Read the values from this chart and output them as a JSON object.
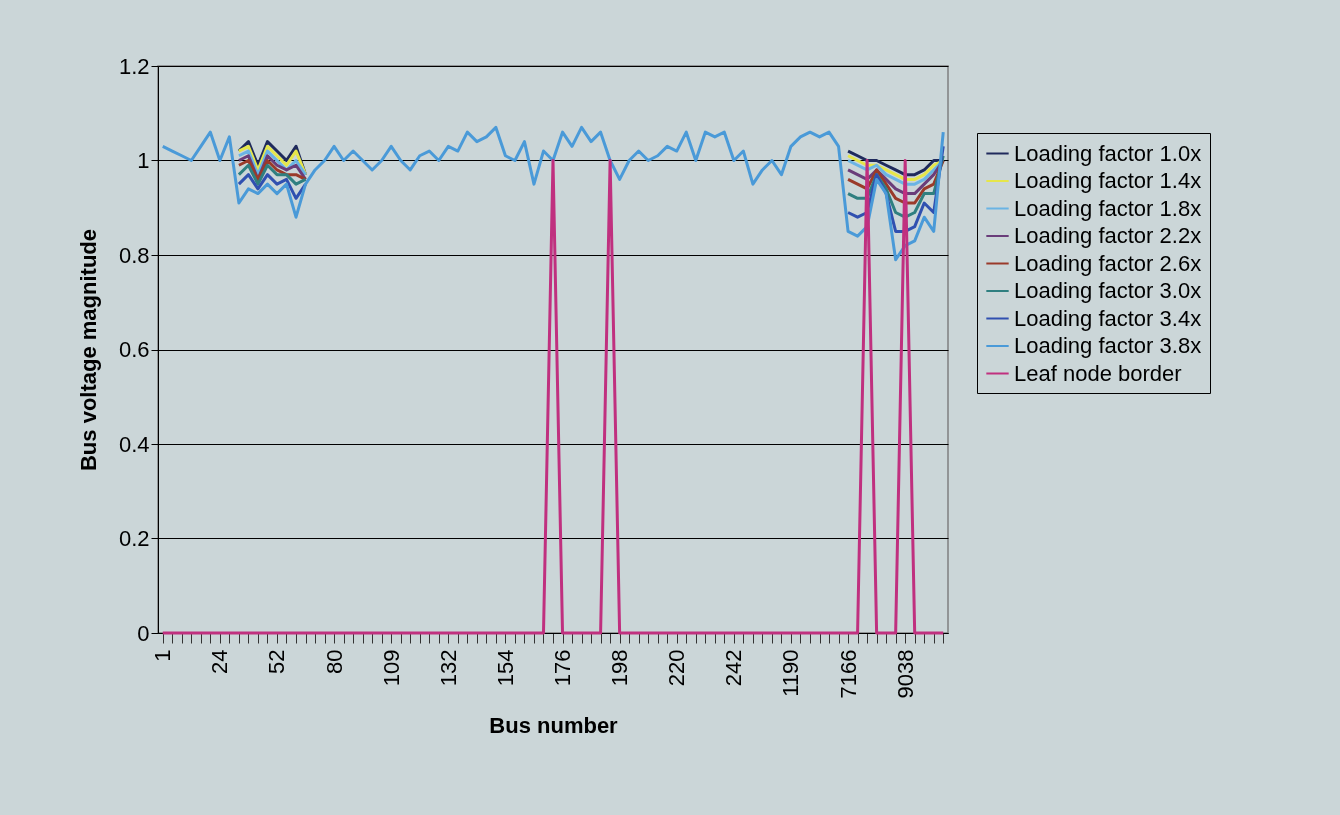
{
  "chart_data": {
    "type": "line",
    "xlabel": "Bus number",
    "ylabel": "Bus voltage magnitude",
    "categories": [
      "1",
      null,
      null,
      null,
      null,
      null,
      "24",
      null,
      null,
      null,
      null,
      null,
      "52",
      null,
      null,
      null,
      null,
      null,
      "80",
      null,
      null,
      null,
      null,
      null,
      "109",
      null,
      null,
      null,
      null,
      null,
      "132",
      null,
      null,
      null,
      null,
      null,
      "154",
      null,
      null,
      null,
      null,
      null,
      "176",
      null,
      null,
      null,
      null,
      null,
      "198",
      null,
      null,
      null,
      null,
      null,
      "220",
      null,
      null,
      null,
      null,
      null,
      "242",
      null,
      null,
      null,
      null,
      null,
      "1190",
      null,
      null,
      null,
      null,
      null,
      "7166",
      null,
      null,
      null,
      null,
      null,
      "9038",
      null,
      null,
      null,
      null
    ],
    "ylim": [
      0,
      1.2
    ],
    "yticks": [
      0,
      0.2,
      0.4,
      0.6,
      0.8,
      1,
      1.2
    ],
    "grid": "y",
    "legend": "right",
    "series": [
      {
        "name": "Loading factor 1.0x",
        "color": "#1f2a5c",
        "values": [
          null,
          null,
          null,
          null,
          null,
          null,
          null,
          null,
          1.02,
          1.04,
          0.99,
          1.04,
          1.02,
          1.0,
          1.03,
          0.97,
          null,
          null,
          null,
          null,
          null,
          null,
          null,
          null,
          null,
          null,
          null,
          null,
          null,
          null,
          null,
          null,
          null,
          null,
          null,
          null,
          null,
          null,
          null,
          null,
          null,
          null,
          null,
          null,
          null,
          null,
          null,
          null,
          null,
          null,
          null,
          null,
          null,
          null,
          null,
          null,
          null,
          null,
          null,
          null,
          null,
          null,
          null,
          null,
          null,
          null,
          null,
          null,
          null,
          null,
          null,
          null,
          1.02,
          1.01,
          1.0,
          1.0,
          0.99,
          0.98,
          0.97,
          0.97,
          0.98,
          1.0,
          1.0
        ]
      },
      {
        "name": "Loading factor 1.4x",
        "color": "#e6e64a",
        "values": [
          null,
          null,
          null,
          null,
          null,
          null,
          null,
          null,
          1.02,
          1.03,
          0.98,
          1.03,
          1.01,
          0.99,
          1.02,
          0.97,
          null,
          null,
          null,
          null,
          null,
          null,
          null,
          null,
          null,
          null,
          null,
          null,
          null,
          null,
          null,
          null,
          null,
          null,
          null,
          null,
          null,
          null,
          null,
          null,
          null,
          null,
          null,
          null,
          null,
          null,
          null,
          null,
          null,
          null,
          null,
          null,
          null,
          null,
          null,
          null,
          null,
          null,
          null,
          null,
          null,
          null,
          null,
          null,
          null,
          null,
          null,
          null,
          null,
          null,
          null,
          null,
          1.01,
          1.0,
          0.99,
          0.99,
          0.98,
          0.97,
          0.96,
          0.96,
          0.97,
          0.99,
          1.0
        ]
      },
      {
        "name": "Loading factor 1.8x",
        "color": "#6ab4e4",
        "values": [
          null,
          null,
          null,
          null,
          null,
          null,
          null,
          null,
          1.01,
          1.02,
          0.97,
          1.02,
          1.0,
          0.98,
          1.0,
          0.97,
          null,
          null,
          null,
          null,
          null,
          null,
          null,
          null,
          null,
          null,
          null,
          null,
          null,
          null,
          null,
          null,
          null,
          null,
          null,
          null,
          null,
          null,
          null,
          null,
          null,
          null,
          null,
          null,
          null,
          null,
          null,
          null,
          null,
          null,
          null,
          null,
          null,
          null,
          null,
          null,
          null,
          null,
          null,
          null,
          null,
          null,
          null,
          null,
          null,
          null,
          null,
          null,
          null,
          null,
          null,
          null,
          1.0,
          0.99,
          0.98,
          0.99,
          0.97,
          0.96,
          0.95,
          0.95,
          0.96,
          0.98,
          1.0
        ]
      },
      {
        "name": "Loading factor 2.2x",
        "color": "#6a3d7a",
        "values": [
          null,
          null,
          null,
          null,
          null,
          null,
          null,
          null,
          1.0,
          1.01,
          0.96,
          1.01,
          0.99,
          0.98,
          0.99,
          0.96,
          null,
          null,
          null,
          null,
          null,
          null,
          null,
          null,
          null,
          null,
          null,
          null,
          null,
          null,
          null,
          null,
          null,
          null,
          null,
          null,
          null,
          null,
          null,
          null,
          null,
          null,
          null,
          null,
          null,
          null,
          null,
          null,
          null,
          null,
          null,
          null,
          null,
          null,
          null,
          null,
          null,
          null,
          null,
          null,
          null,
          null,
          null,
          null,
          null,
          null,
          null,
          null,
          null,
          null,
          null,
          null,
          0.98,
          0.97,
          0.96,
          0.98,
          0.96,
          0.94,
          0.93,
          0.93,
          0.95,
          0.97,
          1.0
        ]
      },
      {
        "name": "Loading factor 2.6x",
        "color": "#9a3a2a",
        "values": [
          null,
          null,
          null,
          null,
          null,
          null,
          null,
          null,
          0.99,
          1.0,
          0.96,
          1.0,
          0.98,
          0.97,
          0.97,
          0.96,
          null,
          null,
          null,
          null,
          null,
          null,
          null,
          null,
          null,
          null,
          null,
          null,
          null,
          null,
          null,
          null,
          null,
          null,
          null,
          null,
          null,
          null,
          null,
          null,
          null,
          null,
          null,
          null,
          null,
          null,
          null,
          null,
          null,
          null,
          null,
          null,
          null,
          null,
          null,
          null,
          null,
          null,
          null,
          null,
          null,
          null,
          null,
          null,
          null,
          null,
          null,
          null,
          null,
          null,
          null,
          null,
          0.96,
          0.95,
          0.94,
          0.98,
          0.95,
          0.92,
          0.91,
          0.91,
          0.94,
          0.95,
          1.0
        ]
      },
      {
        "name": "Loading factor 3.0x",
        "color": "#2f7f80",
        "values": [
          null,
          null,
          null,
          null,
          null,
          null,
          null,
          null,
          0.97,
          0.99,
          0.95,
          0.99,
          0.97,
          0.97,
          0.95,
          0.96,
          null,
          null,
          null,
          null,
          null,
          null,
          null,
          null,
          null,
          null,
          null,
          null,
          null,
          null,
          null,
          null,
          null,
          null,
          null,
          null,
          null,
          null,
          null,
          null,
          null,
          null,
          null,
          null,
          null,
          null,
          null,
          null,
          null,
          null,
          null,
          null,
          null,
          null,
          null,
          null,
          null,
          null,
          null,
          null,
          null,
          null,
          null,
          null,
          null,
          null,
          null,
          null,
          null,
          null,
          null,
          null,
          0.93,
          0.92,
          0.92,
          0.97,
          0.94,
          0.89,
          0.88,
          0.89,
          0.93,
          0.93,
          1.01
        ]
      },
      {
        "name": "Loading factor 3.4x",
        "color": "#3050b0",
        "values": [
          null,
          null,
          null,
          null,
          null,
          null,
          null,
          null,
          0.95,
          0.97,
          0.94,
          0.97,
          0.95,
          0.96,
          0.92,
          0.95,
          null,
          null,
          null,
          null,
          null,
          null,
          null,
          null,
          null,
          null,
          null,
          null,
          null,
          null,
          null,
          null,
          null,
          null,
          null,
          null,
          null,
          null,
          null,
          null,
          null,
          null,
          null,
          null,
          null,
          null,
          null,
          null,
          null,
          null,
          null,
          null,
          null,
          null,
          null,
          null,
          null,
          null,
          null,
          null,
          null,
          null,
          null,
          null,
          null,
          null,
          null,
          null,
          null,
          null,
          null,
          null,
          0.89,
          0.88,
          0.89,
          0.97,
          0.93,
          0.85,
          0.85,
          0.86,
          0.91,
          0.89,
          1.03
        ]
      },
      {
        "name": "Loading factor 3.8x",
        "color": "#4a9ad8",
        "values": [
          1.03,
          1.02,
          1.01,
          1.0,
          1.03,
          1.06,
          1.0,
          1.05,
          0.91,
          0.94,
          0.93,
          0.95,
          0.93,
          0.95,
          0.88,
          0.95,
          0.98,
          1.0,
          1.03,
          1.0,
          1.02,
          1.0,
          0.98,
          1.0,
          1.03,
          1.0,
          0.98,
          1.01,
          1.02,
          1.0,
          1.03,
          1.02,
          1.06,
          1.04,
          1.05,
          1.07,
          1.01,
          1.0,
          1.04,
          0.95,
          1.02,
          1.0,
          1.06,
          1.03,
          1.07,
          1.04,
          1.06,
          1.0,
          0.96,
          1.0,
          1.02,
          1.0,
          1.01,
          1.03,
          1.02,
          1.06,
          1.0,
          1.06,
          1.05,
          1.06,
          1.0,
          1.02,
          0.95,
          0.98,
          1.0,
          0.97,
          1.03,
          1.05,
          1.06,
          1.05,
          1.06,
          1.03,
          0.85,
          0.84,
          0.86,
          0.96,
          0.93,
          0.79,
          0.82,
          0.83,
          0.88,
          0.85,
          1.06
        ]
      },
      {
        "name": "Leaf node border",
        "color": "#c0307f",
        "values": [
          0,
          0,
          0,
          0,
          0,
          0,
          0,
          0,
          0,
          0,
          0,
          0,
          0,
          0,
          0,
          0,
          0,
          0,
          0,
          0,
          0,
          0,
          0,
          0,
          0,
          0,
          0,
          0,
          0,
          0,
          0,
          0,
          0,
          0,
          0,
          0,
          0,
          0,
          0,
          0,
          0,
          1,
          0,
          0,
          0,
          0,
          0,
          1,
          0,
          0,
          0,
          0,
          0,
          0,
          0,
          0,
          0,
          0,
          0,
          0,
          0,
          0,
          0,
          0,
          0,
          0,
          0,
          0,
          0,
          0,
          0,
          0,
          0,
          0,
          1,
          0,
          0,
          0,
          1,
          0,
          0,
          0,
          0
        ]
      }
    ]
  }
}
